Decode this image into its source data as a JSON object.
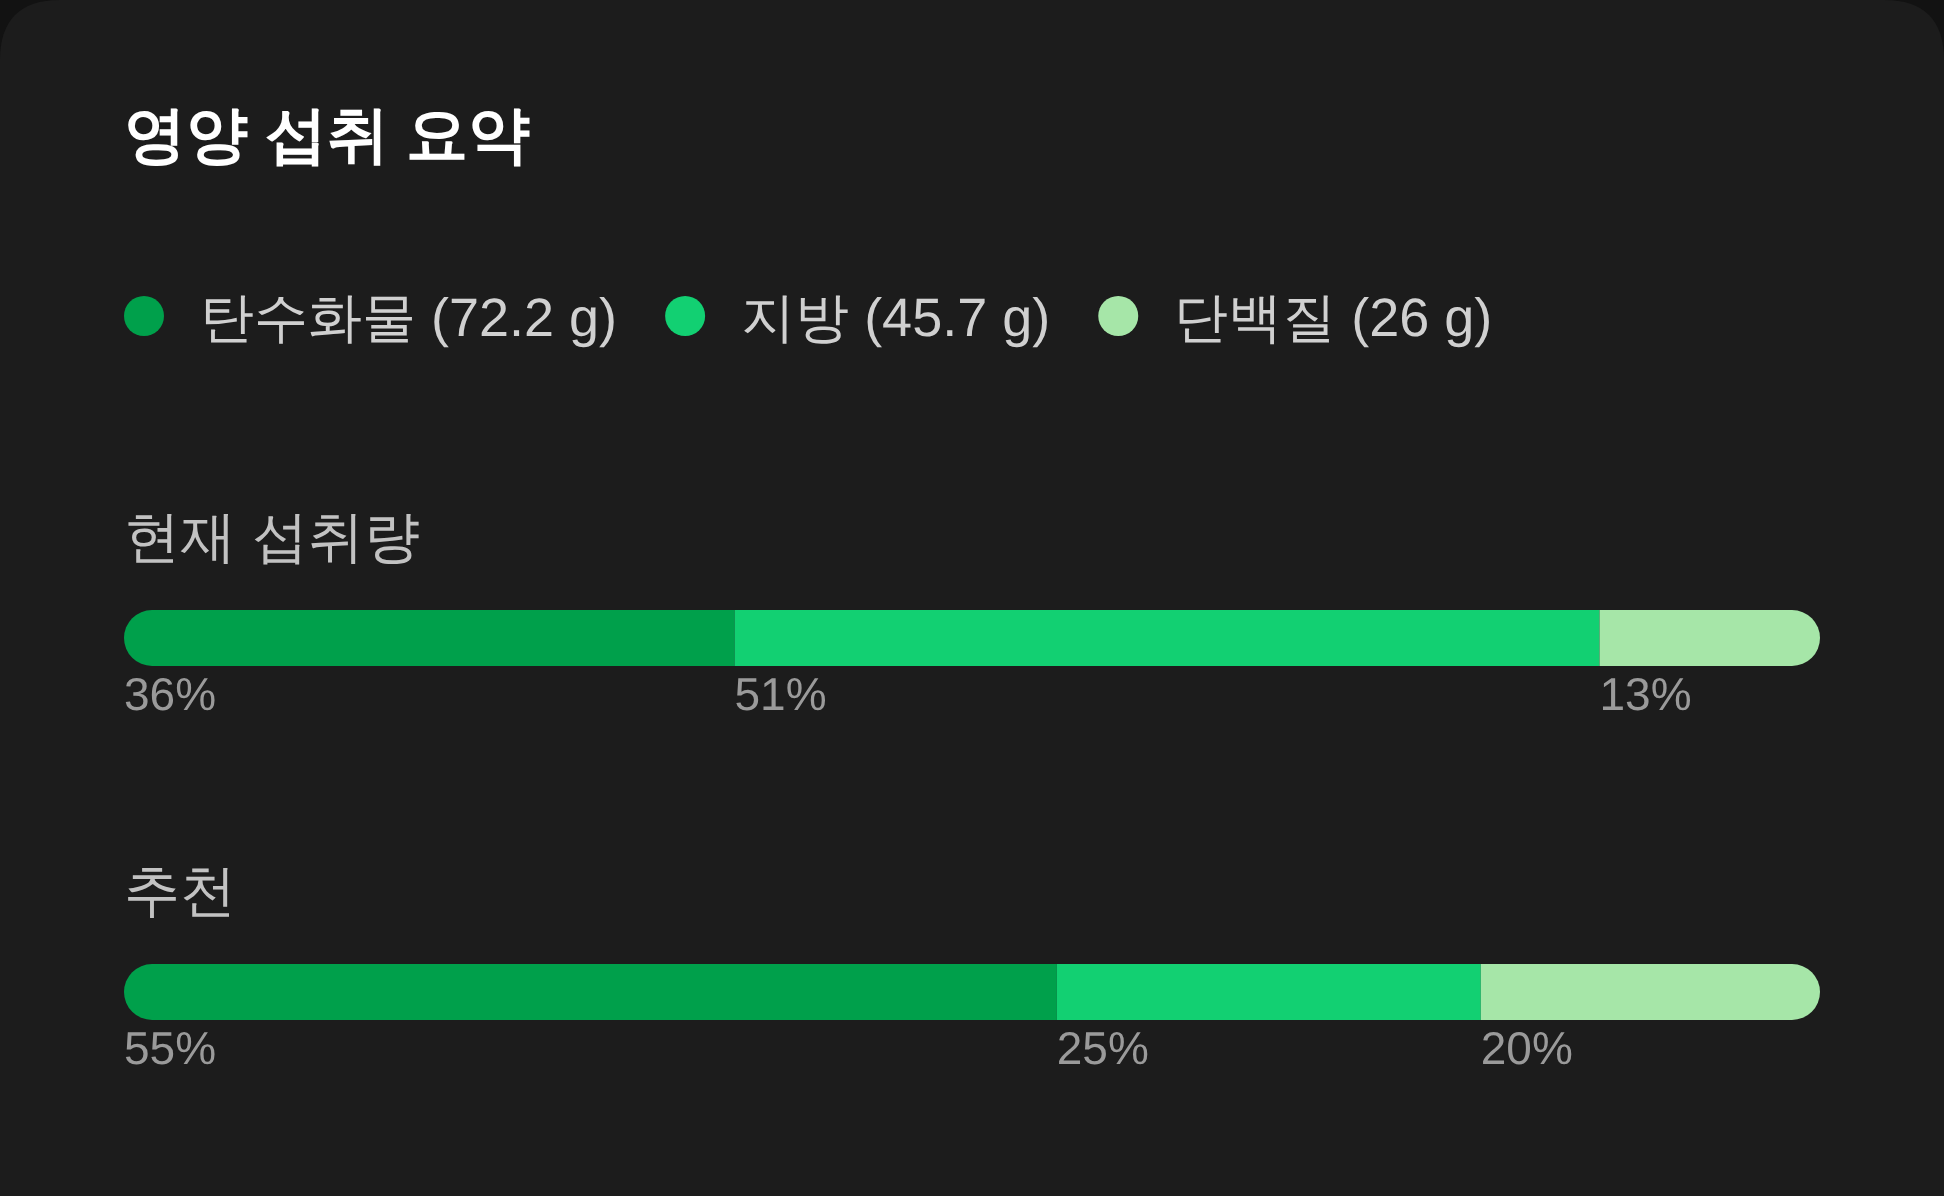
{
  "chart_data": {
    "type": "bar",
    "title": "영양 섭취 요약",
    "stacked": true,
    "orientation": "horizontal",
    "legend": "top",
    "tick_labels": false,
    "grid": false,
    "categories": [
      "현재 섭취량",
      "추천"
    ],
    "series": [
      {
        "name": "탄수화물 (72.2 g)",
        "color": "#00a04b",
        "values": [
          36,
          55
        ],
        "value_labels": [
          "36%",
          "55%"
        ]
      },
      {
        "name": "지방 (45.7 g)",
        "color": "#12d072",
        "values": [
          51,
          25
        ],
        "value_labels": [
          "51%",
          "25%"
        ]
      },
      {
        "name": "단백질 (26 g)",
        "color": "#a6e6a8",
        "values": [
          13,
          20
        ],
        "value_labels": [
          "13%",
          "20%"
        ]
      }
    ]
  }
}
